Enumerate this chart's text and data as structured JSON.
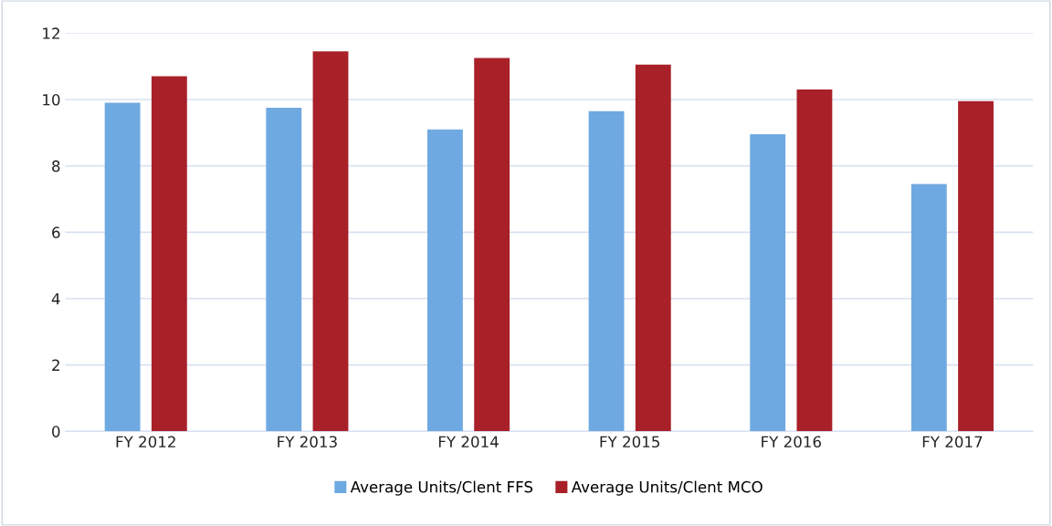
{
  "chart_data": {
    "type": "bar",
    "categories": [
      "FY 2012",
      "FY 2013",
      "FY 2014",
      "FY 2015",
      "FY 2016",
      "FY 2017"
    ],
    "series": [
      {
        "name": "Average Units/Clent FFS",
        "color": "#6fa9e1",
        "values": [
          9.9,
          9.75,
          9.1,
          9.65,
          8.95,
          7.45
        ]
      },
      {
        "name": "Average Units/Clent MCO",
        "color": "#a82028",
        "values": [
          10.7,
          11.45,
          11.25,
          11.05,
          10.3,
          9.95
        ]
      }
    ],
    "ylim": [
      0,
      12
    ],
    "yticks": [
      0,
      2,
      4,
      6,
      8,
      10,
      12
    ],
    "grid": "y",
    "legend": "bottom"
  }
}
